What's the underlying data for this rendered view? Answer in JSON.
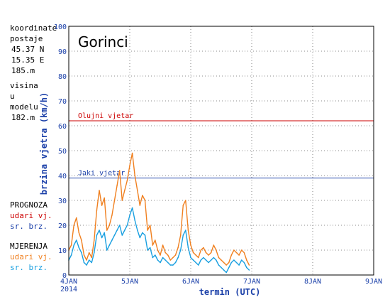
{
  "station": {
    "coords_label": "koordinate postaje",
    "lat": "45.37 N",
    "lon": "15.35 E",
    "elev": "185.m",
    "model_height_label": "visina u modelu",
    "model_height": "182.m"
  },
  "legend": {
    "forecast_title": "PROGNOZA",
    "forecast_gust": "udari vj.",
    "forecast_mean": "sr. brz.",
    "measured_title": "MJERENJA",
    "measured_gust": "udari vj.",
    "measured_mean": "sr. brz."
  },
  "colors": {
    "forecast_gust": "#cc0000",
    "forecast_mean": "#1a3fa8",
    "measured_gust": "#f08020",
    "measured_mean": "#1ba0e0",
    "storm_line": "#cc0000",
    "strong_line": "#1a3fa8",
    "axis_label": "#1a3fa8"
  },
  "chart_data": {
    "type": "line",
    "title": "Gorinci",
    "xlabel": "termin (UTC)",
    "ylabel": "brzina vjetra (km/h)",
    "ylim": [
      0,
      100
    ],
    "yticks": [
      0,
      10,
      20,
      30,
      40,
      50,
      60,
      70,
      80,
      90,
      100
    ],
    "xlim": [
      0,
      120
    ],
    "xticks": [
      {
        "x": 0,
        "label": "4JAN",
        "sub": "2014"
      },
      {
        "x": 24,
        "label": "5JAN"
      },
      {
        "x": 48,
        "label": "6JAN"
      },
      {
        "x": 72,
        "label": "7JAN"
      },
      {
        "x": 96,
        "label": "8JAN"
      },
      {
        "x": 120,
        "label": "9JAN"
      }
    ],
    "grid": true,
    "thresholds": [
      {
        "name": "Olujni vjetar",
        "value": 62
      },
      {
        "name": "Jaki vjetar",
        "value": 39
      }
    ],
    "x_unit": "hours since 4JAN 00 UTC",
    "series": [
      {
        "name": "udari vj.",
        "x": [
          0,
          1,
          2,
          3,
          4,
          5,
          6,
          7,
          8,
          9,
          10,
          11,
          12,
          13,
          14,
          15,
          16,
          17,
          18,
          19,
          20,
          21,
          22,
          23,
          24,
          25,
          26,
          27,
          28,
          29,
          30,
          31,
          32,
          33,
          34,
          35,
          36,
          37,
          38,
          39,
          40,
          41,
          42,
          43,
          44,
          45,
          46,
          47,
          48,
          49,
          50,
          51,
          52,
          53,
          54,
          55,
          56,
          57,
          58,
          59,
          60,
          61,
          62,
          63,
          64,
          65,
          66,
          67,
          68,
          69,
          70,
          71
        ],
        "values": [
          10,
          12,
          20,
          23,
          17,
          14,
          8,
          6,
          9,
          7,
          14,
          26,
          34,
          28,
          31,
          18,
          20,
          24,
          30,
          36,
          42,
          30,
          34,
          38,
          44,
          49,
          40,
          34,
          28,
          32,
          30,
          18,
          20,
          12,
          14,
          10,
          8,
          12,
          9,
          8,
          6,
          7,
          8,
          11,
          16,
          28,
          30,
          18,
          12,
          9,
          8,
          7,
          10,
          11,
          9,
          8,
          9,
          12,
          10,
          7,
          6,
          5,
          4,
          5,
          8,
          10,
          9,
          8,
          10,
          9,
          6,
          4
        ]
      },
      {
        "name": "sr. brz.",
        "x": [
          0,
          1,
          2,
          3,
          4,
          5,
          6,
          7,
          8,
          9,
          10,
          11,
          12,
          13,
          14,
          15,
          16,
          17,
          18,
          19,
          20,
          21,
          22,
          23,
          24,
          25,
          26,
          27,
          28,
          29,
          30,
          31,
          32,
          33,
          34,
          35,
          36,
          37,
          38,
          39,
          40,
          41,
          42,
          43,
          44,
          45,
          46,
          47,
          48,
          49,
          50,
          51,
          52,
          53,
          54,
          55,
          56,
          57,
          58,
          59,
          60,
          61,
          62,
          63,
          64,
          65,
          66,
          67,
          68,
          69,
          70,
          71
        ],
        "values": [
          6,
          8,
          12,
          14,
          11,
          9,
          5,
          4,
          6,
          5,
          9,
          16,
          18,
          15,
          17,
          10,
          12,
          14,
          16,
          18,
          20,
          16,
          18,
          20,
          24,
          27,
          22,
          18,
          15,
          17,
          16,
          10,
          11,
          7,
          8,
          6,
          5,
          7,
          6,
          5,
          4,
          4,
          5,
          7,
          10,
          16,
          18,
          11,
          7,
          6,
          5,
          4,
          6,
          7,
          6,
          5,
          6,
          7,
          6,
          4,
          3,
          2,
          1,
          3,
          5,
          6,
          5,
          4,
          6,
          5,
          3,
          2
        ]
      }
    ]
  }
}
